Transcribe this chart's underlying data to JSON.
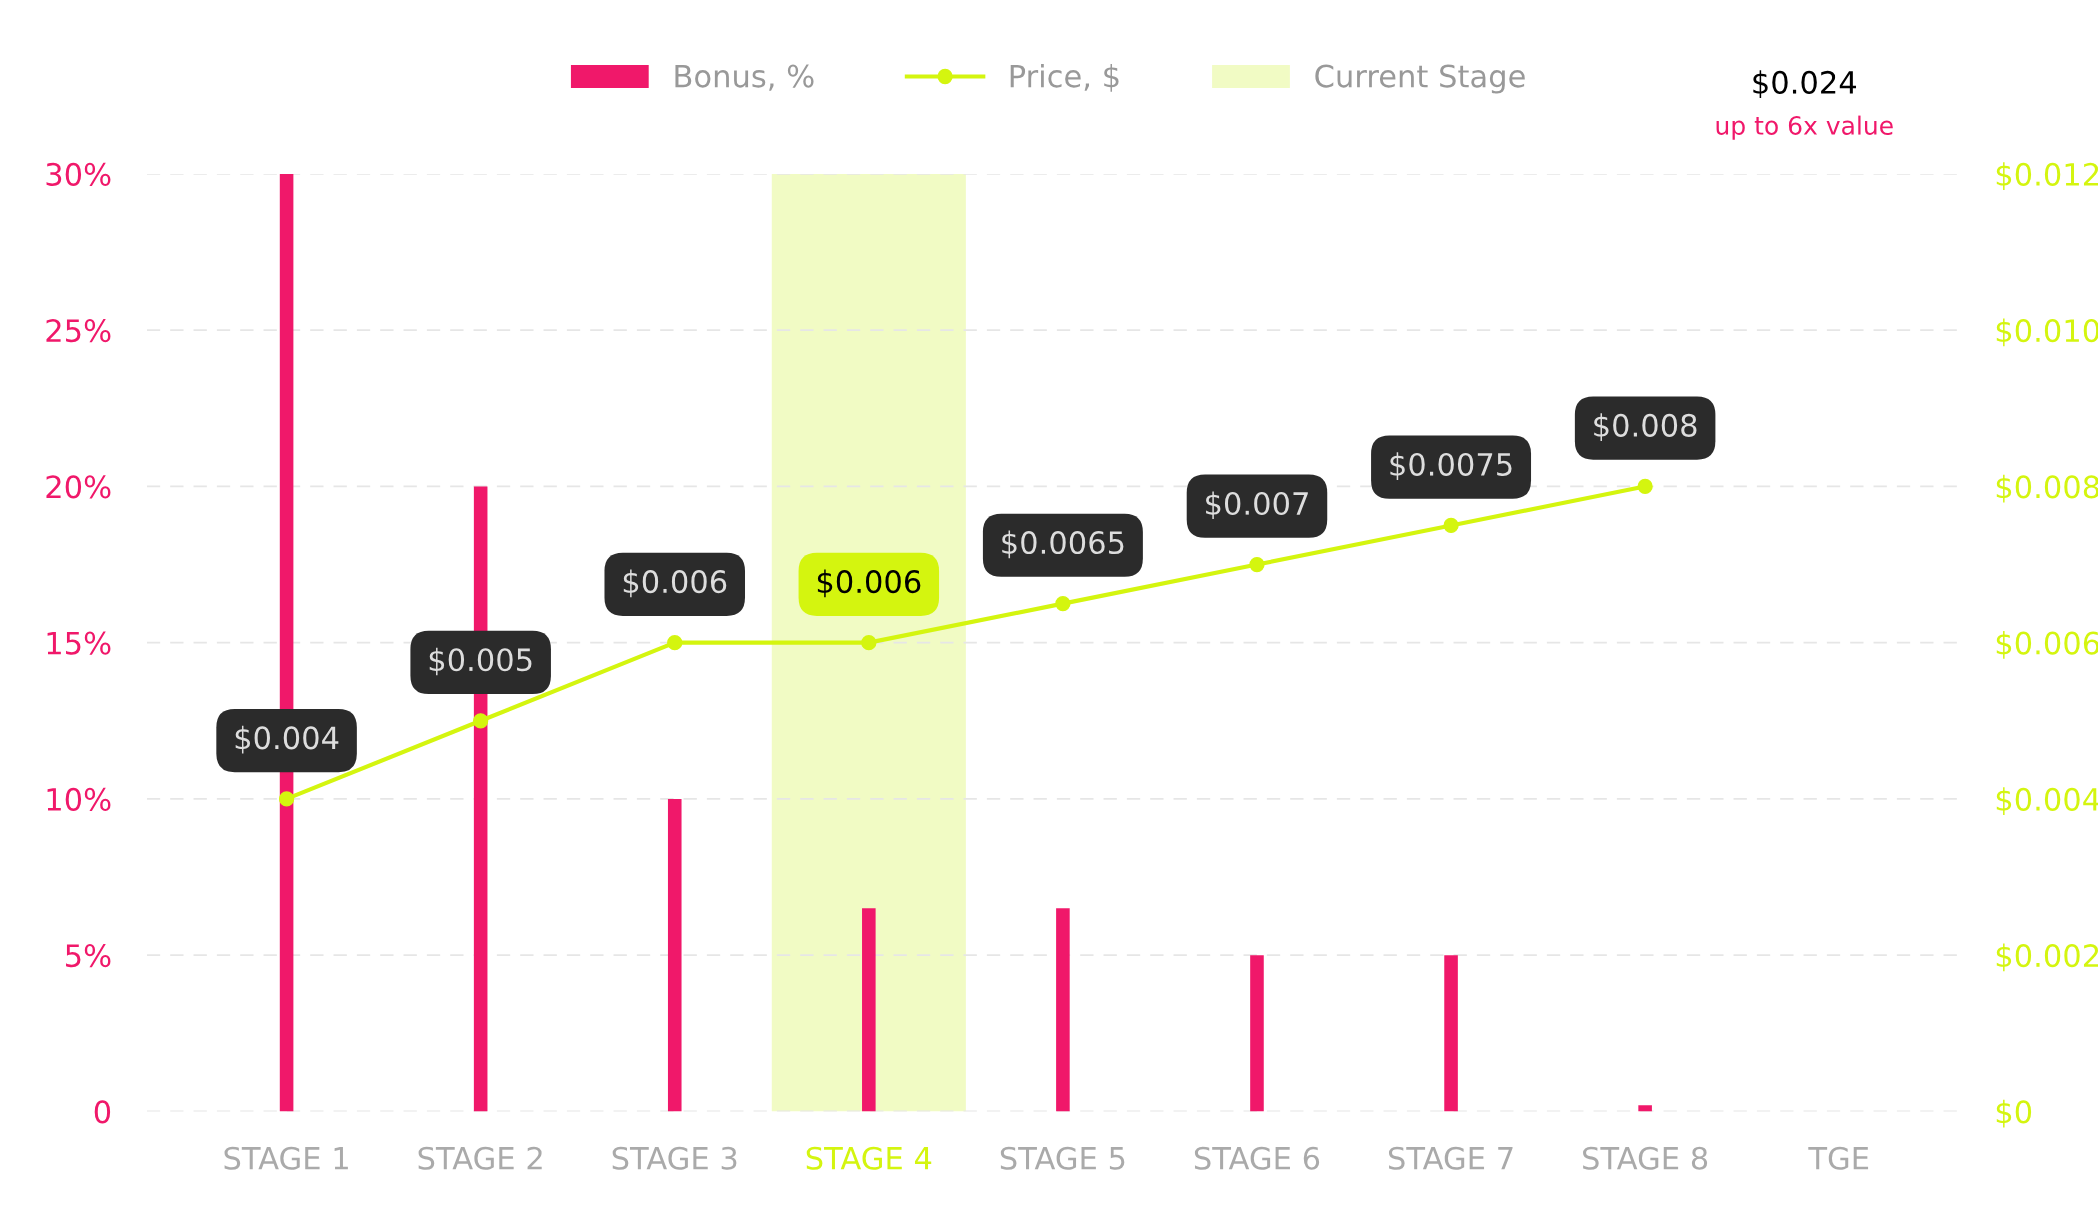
{
  "chart_data": {
    "type": "bar",
    "categories": [
      "STAGE 1",
      "STAGE 2",
      "STAGE 3",
      "STAGE 4",
      "STAGE 5",
      "STAGE 6",
      "STAGE 7",
      "STAGE 8",
      "TGE"
    ],
    "series": [
      {
        "name": "Bonus, %",
        "color": "#f0186a",
        "values": [
          30,
          20,
          10,
          6.5,
          6.5,
          5,
          5,
          0.2,
          null
        ]
      },
      {
        "name": "Price, $",
        "type": "line",
        "axis": "y2",
        "color": "#d4f50f",
        "marker": "circle",
        "values": [
          0.004,
          0.005,
          0.006,
          0.006,
          0.0065,
          0.007,
          0.0075,
          0.008,
          null
        ],
        "value_labels": [
          "$0.004",
          "$0.005",
          "$0.006",
          "$0.006",
          "$0.0065",
          "$0.007",
          "$0.0075",
          "$0.008",
          null
        ]
      }
    ],
    "ylim": [
      0,
      30
    ],
    "yticks": [
      {
        "value": 0,
        "label": "0"
      },
      {
        "value": 5,
        "label": "5%"
      },
      {
        "value": 10,
        "label": "10%"
      },
      {
        "value": 15,
        "label": "15%"
      },
      {
        "value": 20,
        "label": "20%"
      },
      {
        "value": 25,
        "label": "25%"
      },
      {
        "value": 30,
        "label": "30%"
      }
    ],
    "y2lim": [
      0,
      0.012
    ],
    "y2ticks": [
      {
        "value": 0,
        "label": "$0"
      },
      {
        "value": 0.002,
        "label": "$0.002"
      },
      {
        "value": 0.004,
        "label": "$0.004"
      },
      {
        "value": 0.006,
        "label": "$0.006"
      },
      {
        "value": 0.008,
        "label": "$0.008"
      },
      {
        "value": 0.01,
        "label": "$0.010"
      },
      {
        "value": 0.012,
        "label": "$0.012"
      }
    ],
    "bands": [
      {
        "axis": "x",
        "from": "STAGE 4",
        "to": "STAGE 4",
        "label": "Current Stage",
        "color": "#f1fbc4"
      }
    ],
    "annotations": [
      "$0.024",
      "up to 6x value"
    ],
    "grid": "y",
    "legend": "top"
  }
}
